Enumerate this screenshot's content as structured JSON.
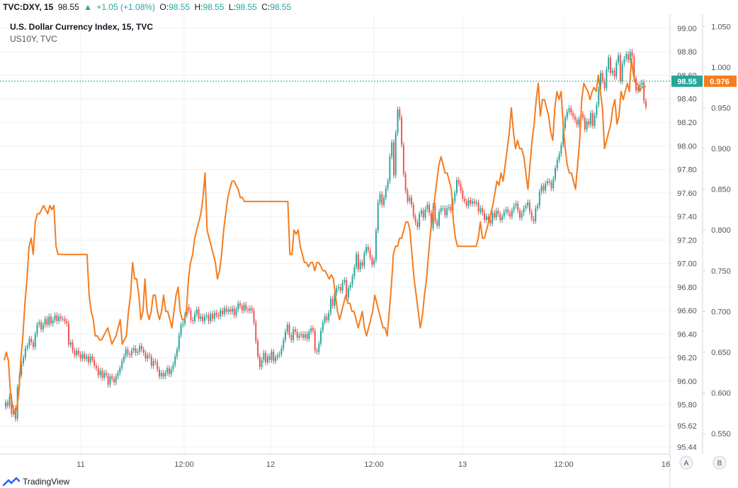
{
  "header": {
    "symbol": "TVC:DXY, 15",
    "last": "98.55",
    "change": "+1.05 (+1.08%)",
    "o_label": "O:",
    "o_val": "98.55",
    "h_label": "H:",
    "h_val": "98.55",
    "l_label": "L:",
    "l_val": "98.55",
    "c_label": "C:",
    "c_val": "98.55"
  },
  "legend": {
    "main": "U.S. Dollar Currency Index, 15, TVC",
    "overlay": "US10Y, TVC"
  },
  "footer": {
    "brand": "TradingView"
  },
  "axis_buttons": {
    "a": "A",
    "b": "B"
  },
  "colors": {
    "up": "#26a69a",
    "down": "#ef5350",
    "overlay": "#f57c1f",
    "grid": "#eef0f3",
    "axis_text": "#50535e"
  },
  "chart_data": {
    "type": "line",
    "x_labels": [
      "11",
      "12:00",
      "12",
      "12:00",
      "13",
      "12:00",
      "16"
    ],
    "price_axis_left_ticks": [
      "99.00",
      "98.80",
      "98.60",
      "98.40",
      "98.20",
      "98.00",
      "97.80",
      "97.60",
      "97.40",
      "97.20",
      "97.00",
      "96.80",
      "96.60",
      "96.40",
      "96.20",
      "96.00",
      "95.80",
      "95.62",
      "95.44"
    ],
    "price_axis_right_ticks": [
      "1.050",
      "1.000",
      "0.950",
      "0.900",
      "0.850",
      "0.800",
      "0.750",
      "0.700",
      "0.650",
      "0.600",
      "0.550"
    ],
    "price_label_left": "98.55",
    "price_label_right": "0.976",
    "series": [
      {
        "name": "U.S. Dollar Currency Index, 15, TVC",
        "kind": "candles",
        "close": [
          95.82,
          95.79,
          95.87,
          95.72,
          95.77,
          95.68,
          95.95,
          96.05,
          96.15,
          96.2,
          96.28,
          96.3,
          96.36,
          96.33,
          96.29,
          96.4,
          96.48,
          96.5,
          96.44,
          96.48,
          96.53,
          96.48,
          96.55,
          96.49,
          96.52,
          96.56,
          96.51,
          96.55,
          96.53,
          96.53,
          96.51,
          96.49,
          96.31,
          96.33,
          96.26,
          96.22,
          96.26,
          96.23,
          96.19,
          96.23,
          96.19,
          96.21,
          96.16,
          96.21,
          96.18,
          96.13,
          96.11,
          96.05,
          96.09,
          96.03,
          96.07,
          96.05,
          95.97,
          96.04,
          96.02,
          95.99,
          96.04,
          96.07,
          96.11,
          96.17,
          96.21,
          96.27,
          96.23,
          96.22,
          96.26,
          96.28,
          96.24,
          96.25,
          96.3,
          96.27,
          96.24,
          96.19,
          96.22,
          96.21,
          96.13,
          96.17,
          96.16,
          96.1,
          96.04,
          96.07,
          96.04,
          96.07,
          96.11,
          96.06,
          96.1,
          96.14,
          96.21,
          96.27,
          96.39,
          96.48,
          96.49,
          96.56,
          96.63,
          96.6,
          96.52,
          96.51,
          96.57,
          96.61,
          96.53,
          96.55,
          96.51,
          96.55,
          96.56,
          96.51,
          96.57,
          96.53,
          96.58,
          96.56,
          96.55,
          96.6,
          96.57,
          96.62,
          96.59,
          96.61,
          96.59,
          96.62,
          96.56,
          96.61,
          96.66,
          96.64,
          96.6,
          96.65,
          96.61,
          96.6,
          96.62,
          96.6,
          96.5,
          96.34,
          96.21,
          96.12,
          96.18,
          96.24,
          96.16,
          96.21,
          96.18,
          96.25,
          96.17,
          96.2,
          96.22,
          96.23,
          96.28,
          96.35,
          96.42,
          96.48,
          96.39,
          96.35,
          96.44,
          96.42,
          96.37,
          96.39,
          96.4,
          96.37,
          96.4,
          96.36,
          96.42,
          96.45,
          96.43,
          96.26,
          96.25,
          96.32,
          96.43,
          96.5,
          96.55,
          96.52,
          96.58,
          96.7,
          96.64,
          96.75,
          96.79,
          96.8,
          96.77,
          96.84,
          96.86,
          96.71,
          96.79,
          96.82,
          96.89,
          96.97,
          97.08,
          96.95,
          97.01,
          96.98,
          97.09,
          97.14,
          97.11,
          97.05,
          96.99,
          97.03,
          97.28,
          97.52,
          97.59,
          97.5,
          97.56,
          97.64,
          97.7,
          97.91,
          98.03,
          97.75,
          98.11,
          98.31,
          98.24,
          98.01,
          97.76,
          97.62,
          97.53,
          97.56,
          97.5,
          97.4,
          97.35,
          97.31,
          97.42,
          97.45,
          97.39,
          97.46,
          97.5,
          97.43,
          97.3,
          97.49,
          97.36,
          97.32,
          97.44,
          97.47,
          97.47,
          97.41,
          97.47,
          97.48,
          97.45,
          97.53,
          97.6,
          97.71,
          97.68,
          97.62,
          97.55,
          97.53,
          97.49,
          97.54,
          97.51,
          97.53,
          97.51,
          97.52,
          97.44,
          97.47,
          97.43,
          97.37,
          97.4,
          97.37,
          97.34,
          97.43,
          97.39,
          97.45,
          97.42,
          97.37,
          97.4,
          97.44,
          97.46,
          97.43,
          97.4,
          97.45,
          97.49,
          97.51,
          97.45,
          97.39,
          97.43,
          97.47,
          97.49,
          97.52,
          97.44,
          97.38,
          97.36,
          97.47,
          97.49,
          97.61,
          97.66,
          97.62,
          97.68,
          97.7,
          97.69,
          97.64,
          97.72,
          97.81,
          97.88,
          97.93,
          98.01,
          98.15,
          98.24,
          98.29,
          98.32,
          98.28,
          98.25,
          98.22,
          98.18,
          98.23,
          98.27,
          98.24,
          98.14,
          98.21,
          98.18,
          98.28,
          98.17,
          98.26,
          98.35,
          98.48,
          98.62,
          98.55,
          98.49,
          98.65,
          98.75,
          98.62,
          98.64,
          98.59,
          98.71,
          98.77,
          98.55,
          98.7,
          98.74,
          98.78,
          98.73,
          98.8,
          98.76,
          98.57,
          98.47,
          98.5,
          98.52,
          98.54,
          98.38,
          98.33
        ]
      },
      {
        "name": "US10Y, TVC",
        "kind": "line",
        "values": [
          0.64,
          0.65,
          0.64,
          0.6,
          0.585,
          0.575,
          0.58,
          0.6,
          0.64,
          0.67,
          0.71,
          0.74,
          0.78,
          0.79,
          0.77,
          0.81,
          0.82,
          0.82,
          0.825,
          0.83,
          0.825,
          0.82,
          0.83,
          0.825,
          0.83,
          0.78,
          0.77,
          0.77,
          0.77,
          0.77,
          0.77,
          0.77,
          0.77,
          0.77,
          0.77,
          0.77,
          0.77,
          0.77,
          0.77,
          0.77,
          0.77,
          0.72,
          0.7,
          0.69,
          0.67,
          0.67,
          0.665,
          0.665,
          0.67,
          0.675,
          0.68,
          0.67,
          0.66,
          0.665,
          0.67,
          0.68,
          0.69,
          0.66,
          0.665,
          0.67,
          0.7,
          0.72,
          0.76,
          0.74,
          0.74,
          0.72,
          0.69,
          0.7,
          0.74,
          0.7,
          0.69,
          0.7,
          0.72,
          0.72,
          0.7,
          0.69,
          0.7,
          0.72,
          0.7,
          0.7,
          0.69,
          0.68,
          0.7,
          0.72,
          0.73,
          0.7,
          0.69,
          0.69,
          0.7,
          0.74,
          0.76,
          0.77,
          0.79,
          0.8,
          0.81,
          0.82,
          0.84,
          0.87,
          0.8,
          0.79,
          0.78,
          0.77,
          0.76,
          0.74,
          0.75,
          0.77,
          0.8,
          0.82,
          0.84,
          0.85,
          0.86,
          0.86,
          0.855,
          0.85,
          0.84,
          0.84,
          0.835,
          0.835,
          0.835,
          0.835,
          0.835,
          0.835,
          0.835,
          0.835,
          0.835,
          0.835,
          0.835,
          0.835,
          0.835,
          0.835,
          0.835,
          0.835,
          0.835,
          0.835,
          0.835,
          0.835,
          0.835,
          0.835,
          0.77,
          0.77,
          0.8,
          0.795,
          0.8,
          0.78,
          0.77,
          0.76,
          0.76,
          0.755,
          0.76,
          0.76,
          0.75,
          0.76,
          0.76,
          0.755,
          0.75,
          0.75,
          0.745,
          0.74,
          0.745,
          0.74,
          0.72,
          0.7,
          0.69,
          0.7,
          0.71,
          0.72,
          0.71,
          0.71,
          0.7,
          0.7,
          0.69,
          0.68,
          0.69,
          0.7,
          0.68,
          0.67,
          0.68,
          0.69,
          0.7,
          0.72,
          0.71,
          0.7,
          0.69,
          0.68,
          0.68,
          0.67,
          0.7,
          0.73,
          0.77,
          0.78,
          0.78,
          0.79,
          0.79,
          0.8,
          0.81,
          0.81,
          0.8,
          0.77,
          0.74,
          0.72,
          0.7,
          0.68,
          0.695,
          0.72,
          0.74,
          0.77,
          0.8,
          0.82,
          0.84,
          0.86,
          0.88,
          0.89,
          0.88,
          0.87,
          0.87,
          0.86,
          0.85,
          0.81,
          0.79,
          0.78,
          0.78,
          0.78,
          0.78,
          0.78,
          0.78,
          0.78,
          0.78,
          0.78,
          0.78,
          0.79,
          0.81,
          0.79,
          0.79,
          0.8,
          0.81,
          0.82,
          0.83,
          0.845,
          0.86,
          0.855,
          0.87,
          0.86,
          0.88,
          0.9,
          0.92,
          0.95,
          0.92,
          0.9,
          0.91,
          0.9,
          0.9,
          0.89,
          0.87,
          0.85,
          0.88,
          0.91,
          0.93,
          0.96,
          0.98,
          0.94,
          0.96,
          0.96,
          0.95,
          0.94,
          0.92,
          0.91,
          0.95,
          0.97,
          0.96,
          0.97,
          0.93,
          0.9,
          0.88,
          0.87,
          0.87,
          0.86,
          0.85,
          0.88,
          0.91,
          0.96,
          0.98,
          0.975,
          0.97,
          0.96,
          0.97,
          0.975,
          0.97,
          0.99,
          0.97,
          0.95,
          0.9,
          0.91,
          0.92,
          0.93,
          0.95,
          0.96,
          0.93,
          0.94,
          0.97,
          0.96,
          0.97,
          0.98,
          0.97,
          1.01,
          0.99,
          0.98,
          0.98,
          0.97,
          0.975,
          0.976,
          0.976
        ]
      }
    ],
    "ylim_left": [
      95.38,
      99.12
    ],
    "ylim_right": [
      0.525,
      1.065
    ],
    "grid": true,
    "crosshair_value": 98.55
  }
}
